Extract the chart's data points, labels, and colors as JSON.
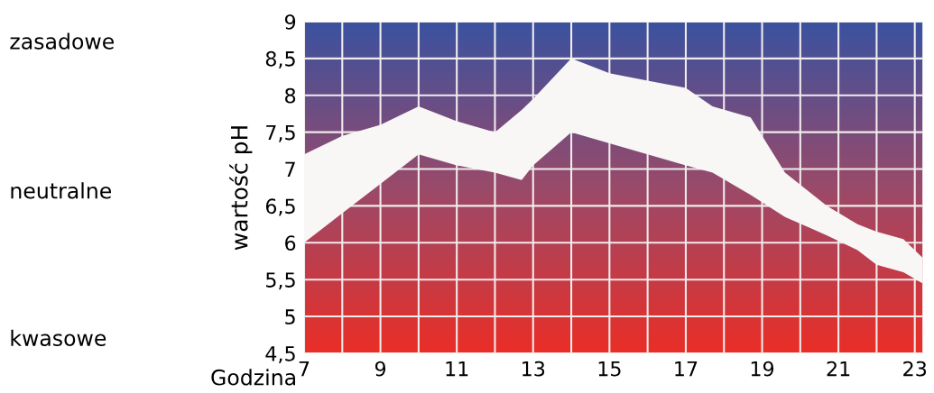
{
  "chart_data": {
    "type": "area",
    "ylabel": "wartość pH",
    "xlabel": "Godzina",
    "x": [
      7,
      8,
      9,
      10,
      11,
      12,
      12.7,
      13,
      14,
      15,
      16,
      17,
      17.7,
      18.7,
      19.6,
      20.7,
      21.5,
      22,
      22.7,
      23.2
    ],
    "series": [
      {
        "color": "#f8f7f5",
        "values": [
          null,
          null,
          null,
          null,
          null,
          null,
          null,
          null,
          null,
          null,
          null,
          null,
          null,
          null,
          null,
          null,
          null,
          null,
          null,
          null
        ],
        "upper": [
          7.2,
          7.45,
          7.6,
          7.85,
          7.65,
          7.5,
          7.8,
          7.95,
          8.5,
          8.3,
          8.2,
          8.1,
          7.85,
          7.7,
          6.95,
          6.5,
          6.25,
          6.15,
          6.05,
          5.8
        ],
        "lower": [
          6.0,
          6.4,
          6.8,
          7.2,
          7.05,
          6.95,
          6.85,
          7.05,
          7.5,
          7.35,
          7.2,
          7.05,
          6.95,
          6.65,
          6.35,
          6.1,
          5.9,
          5.7,
          5.6,
          5.45
        ]
      }
    ],
    "xlim": [
      7,
      23.2
    ],
    "ylim": [
      4.5,
      9
    ],
    "xticks": [
      7,
      {
        "value": 8,
        "label": null
      },
      9,
      {
        "value": 10,
        "label": null
      },
      11,
      {
        "value": 12,
        "label": null
      },
      13,
      {
        "value": 14,
        "label": null
      },
      15,
      {
        "value": 16,
        "label": null
      },
      17,
      {
        "value": 18,
        "label": null
      },
      19,
      {
        "value": 20,
        "label": null
      },
      21,
      {
        "value": 22,
        "label": null
      },
      23
    ],
    "yticks": [
      {
        "value": 4.5,
        "label": "4,5"
      },
      5,
      {
        "value": 5.5,
        "label": "5,5"
      },
      6,
      {
        "value": 6.5,
        "label": "6,5"
      },
      7,
      {
        "value": 7.5,
        "label": "7,5"
      },
      8,
      {
        "value": 8.5,
        "label": "8,5"
      },
      9
    ],
    "grid": true,
    "annotations": [
      "zasadowe",
      "neutralne",
      "kwasowe"
    ]
  }
}
